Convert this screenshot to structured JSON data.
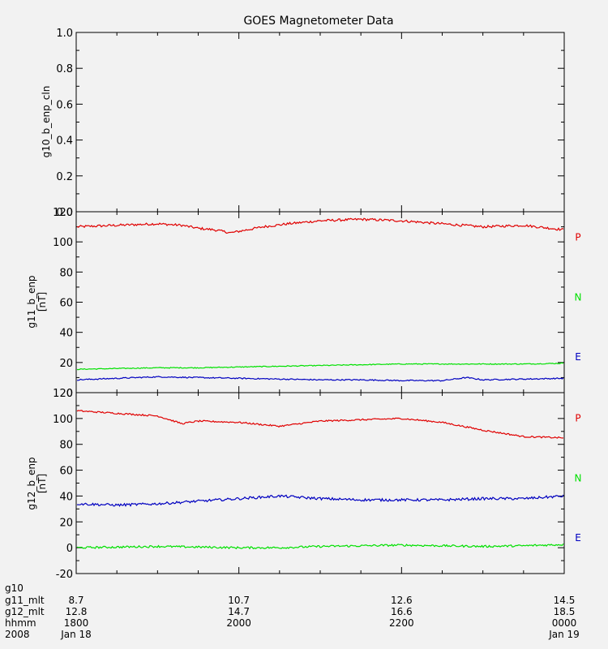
{
  "title": "GOES Magnetometer Data",
  "colors": {
    "P": "#e00000",
    "N": "#00e000",
    "E": "#0000c0",
    "background": "#f2f2f2",
    "axis": "#000000"
  },
  "chart_data": [
    {
      "type": "line",
      "ylabel": "g10_b_enp_cln",
      "yunit": "",
      "ylim": [
        0.0,
        1.0
      ],
      "yticks": [
        "0.0",
        "0.2",
        "0.4",
        "0.6",
        "0.8",
        "1.0"
      ],
      "xlim_hours": [
        0,
        6
      ],
      "series": []
    },
    {
      "type": "line",
      "ylabel": "g11_b_enp",
      "yunit": "[nT]",
      "ylim": [
        0,
        120
      ],
      "yticks": [
        "0",
        "20",
        "40",
        "60",
        "80",
        "100",
        "120"
      ],
      "xlim_hours": [
        0,
        6
      ],
      "series": [
        {
          "name": "P",
          "color": "#e00000",
          "noise": 0.8,
          "x": [
            0,
            0.5,
            1,
            1.3,
            1.5,
            1.7,
            1.9,
            2.1,
            2.3,
            2.6,
            3,
            3.5,
            4,
            4.5,
            5,
            5.5,
            6
          ],
          "y": [
            110,
            111,
            112,
            111,
            109,
            108,
            106,
            108,
            110,
            112,
            114,
            115,
            114,
            112,
            110,
            111,
            108
          ]
        },
        {
          "name": "N",
          "color": "#00e000",
          "noise": 0.3,
          "x": [
            0,
            0.5,
            1,
            1.5,
            2,
            2.5,
            3,
            3.5,
            4,
            4.5,
            5,
            5.5,
            6
          ],
          "y": [
            15.5,
            16,
            16.5,
            16.5,
            17,
            17.5,
            18,
            18.5,
            19,
            19,
            19,
            19,
            19.5
          ]
        },
        {
          "name": "E",
          "color": "#0000c0",
          "noise": 0.4,
          "x": [
            0,
            0.5,
            1,
            1.5,
            2,
            2.5,
            3,
            3.5,
            4,
            4.5,
            4.8,
            5,
            5.5,
            6
          ],
          "y": [
            8.5,
            9.5,
            10.5,
            10,
            9.5,
            9,
            8.5,
            8.5,
            8,
            8,
            10,
            8.5,
            9,
            9.5
          ]
        }
      ]
    },
    {
      "type": "line",
      "ylabel": "g12_b_enp",
      "yunit": "[nT]",
      "ylim": [
        -20,
        120
      ],
      "yticks": [
        "-20",
        "0",
        "20",
        "40",
        "60",
        "80",
        "100",
        "120"
      ],
      "xlim_hours": [
        0,
        6
      ],
      "series": [
        {
          "name": "P",
          "color": "#e00000",
          "noise": 0.6,
          "x": [
            0,
            0.5,
            1,
            1.3,
            1.5,
            2,
            2.5,
            3,
            3.5,
            4,
            4.5,
            5,
            5.5,
            6
          ],
          "y": [
            106,
            104,
            102,
            96,
            98,
            97,
            94,
            98,
            99,
            100,
            97,
            91,
            86,
            85
          ]
        },
        {
          "name": "N",
          "color": "#00e000",
          "noise": 0.8,
          "x": [
            0,
            0.5,
            1,
            1.5,
            2,
            2.5,
            3,
            3.5,
            4,
            4.5,
            5,
            5.5,
            6
          ],
          "y": [
            0,
            0.5,
            1,
            0.5,
            0,
            0,
            1,
            1.5,
            2,
            1.5,
            1,
            1.5,
            2.5
          ]
        },
        {
          "name": "E",
          "color": "#0000c0",
          "noise": 1.0,
          "x": [
            0,
            0.5,
            1,
            1.5,
            2,
            2.5,
            3,
            3.5,
            4,
            4.5,
            5,
            5.5,
            6
          ],
          "y": [
            34,
            33,
            34,
            36,
            38,
            40,
            38,
            37,
            37,
            37,
            38,
            38,
            40
          ]
        }
      ]
    }
  ],
  "xaxis": {
    "rows": [
      {
        "label": "g10",
        "values": [
          "",
          "",
          "",
          ""
        ]
      },
      {
        "label": "g11_mlt",
        "values": [
          "8.7",
          "10.7",
          "12.6",
          "14.5"
        ]
      },
      {
        "label": "g12_mlt",
        "values": [
          "12.8",
          "14.7",
          "16.6",
          "18.5"
        ]
      },
      {
        "label": "hhmm",
        "values": [
          "1800",
          "2000",
          "2200",
          "0000"
        ]
      },
      {
        "label": "2008",
        "values": [
          "Jan 18",
          "",
          "",
          "Jan 19"
        ]
      }
    ],
    "major_hours": [
      0,
      2,
      4,
      6
    ]
  }
}
